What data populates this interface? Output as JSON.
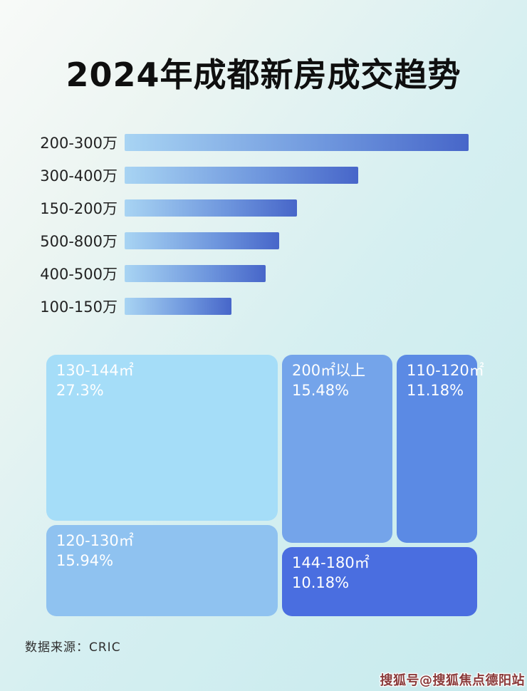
{
  "title": "2024年成都新房成交趋势",
  "footer": {
    "source_label": "数据来源：CRIC"
  },
  "watermark": "搜狐号@搜狐焦点德阳站",
  "colors": {
    "background_start": "#f8faf8",
    "background_end": "#c6eaed",
    "bar_gradient_start": "#a8d4f3",
    "bar_gradient_end": "#4766c9",
    "title_text": "#0f0f0f",
    "bar_label_text": "#222222",
    "tile_text": "#ffffff",
    "source_text": "#2f2f2f",
    "watermark_text": "#8a3a3a"
  },
  "chart_data": [
    {
      "type": "bar",
      "orientation": "horizontal",
      "title": "2024年成都新房成交趋势",
      "categories": [
        "200-300万",
        "300-400万",
        "150-200万",
        "500-800万",
        "400-500万",
        "100-150万"
      ],
      "values": [
        100,
        68,
        50,
        45,
        41,
        31
      ],
      "value_note": "no numeric axis or data labels shown; values are bar lengths as % of the longest bar",
      "xlabel": "",
      "ylabel": "",
      "grid": false,
      "legend": false,
      "bar_color": "gradient #a8d4f3 to #4766c9"
    },
    {
      "type": "treemap",
      "tiles": [
        {
          "label": "130-144㎡",
          "value_pct": 27.3,
          "value_text": "27.3%",
          "color": "#a5ddf8"
        },
        {
          "label": "120-130㎡",
          "value_pct": 15.94,
          "value_text": "15.94%",
          "color": "#8fc2f0"
        },
        {
          "label": "200㎡以上",
          "value_pct": 15.48,
          "value_text": "15.48%",
          "color": "#74a4ea"
        },
        {
          "label": "110-120㎡",
          "value_pct": 11.18,
          "value_text": "11.18%",
          "color": "#5b8ae4"
        },
        {
          "label": "144-180㎡",
          "value_pct": 10.18,
          "value_text": "10.18%",
          "color": "#4a6ee0"
        }
      ]
    }
  ]
}
